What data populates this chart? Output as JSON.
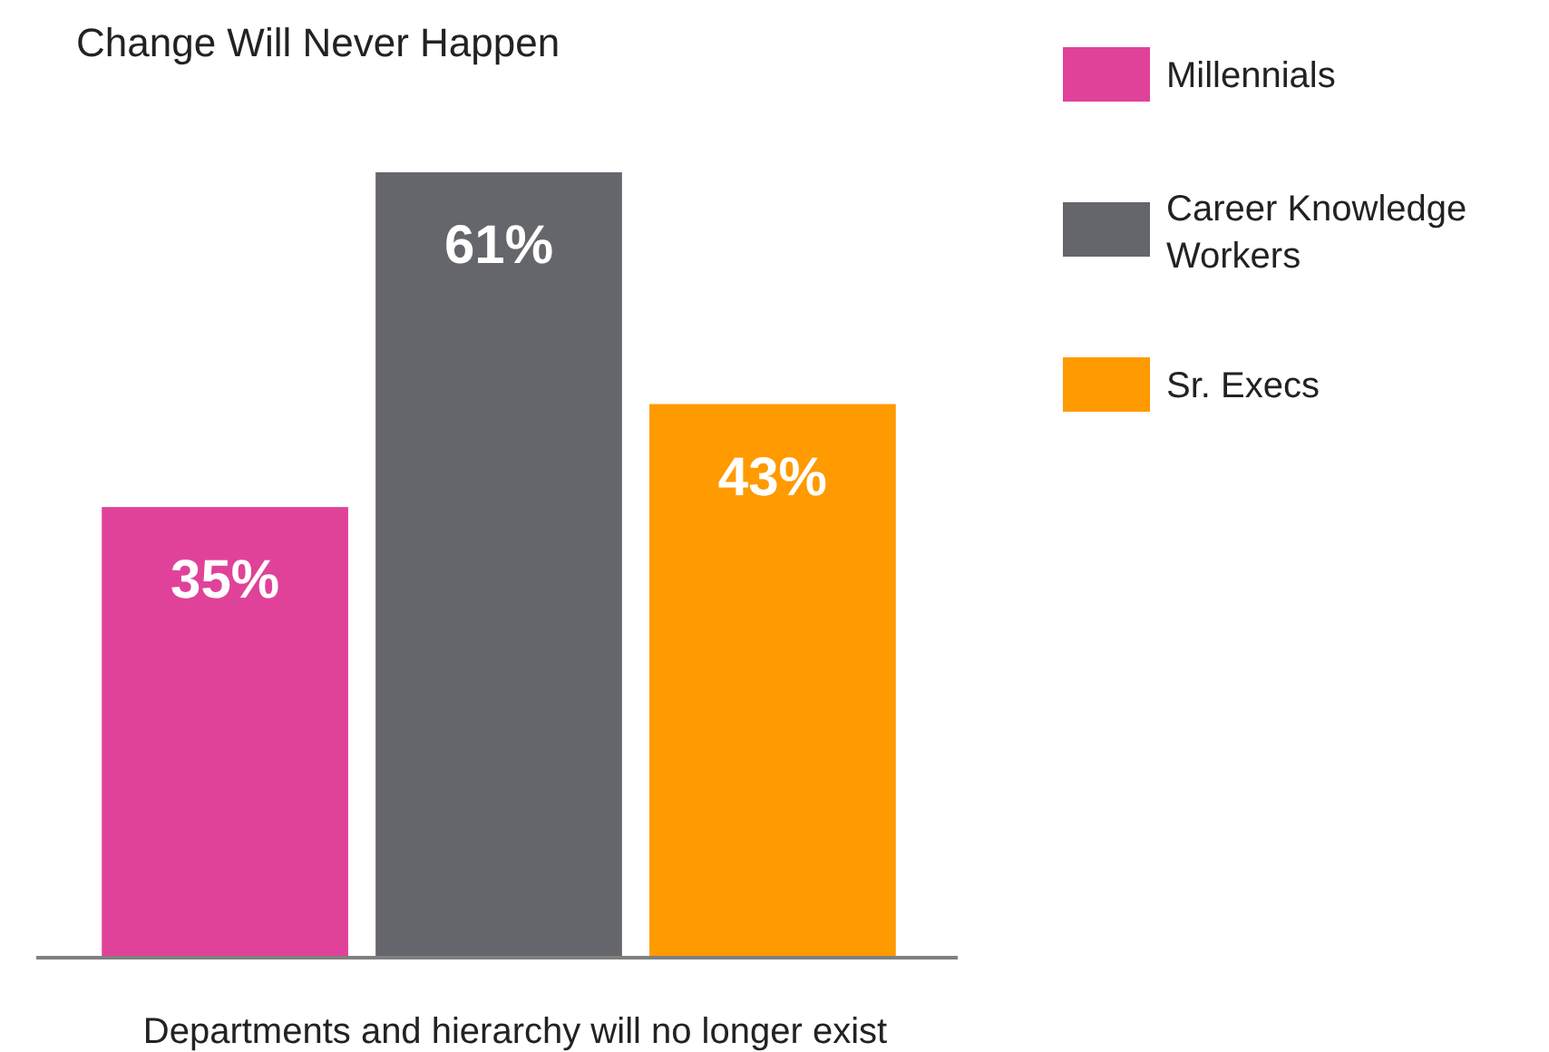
{
  "chart_data": {
    "type": "bar",
    "title": "Change Will Never Happen",
    "xlabel": "Departments and hierarchy will no longer exist",
    "categories": [
      null,
      null,
      null
    ],
    "stacked": true,
    "series": [
      {
        "name": "Millennials",
        "color": "#e0429a",
        "values": [
          35,
          null,
          null
        ],
        "value_labels": [
          "35%",
          null,
          null
        ]
      },
      {
        "name": "Career Knowledge Workers",
        "color": "#65666b",
        "values": [
          null,
          61,
          null
        ],
        "value_labels": [
          null,
          "61%",
          null
        ]
      },
      {
        "name": "Sr. Execs",
        "color": "#ff9a00",
        "values": [
          null,
          null,
          43
        ],
        "value_labels": [
          null,
          null,
          "43%"
        ]
      }
    ],
    "legend": "right",
    "grid": false
  }
}
